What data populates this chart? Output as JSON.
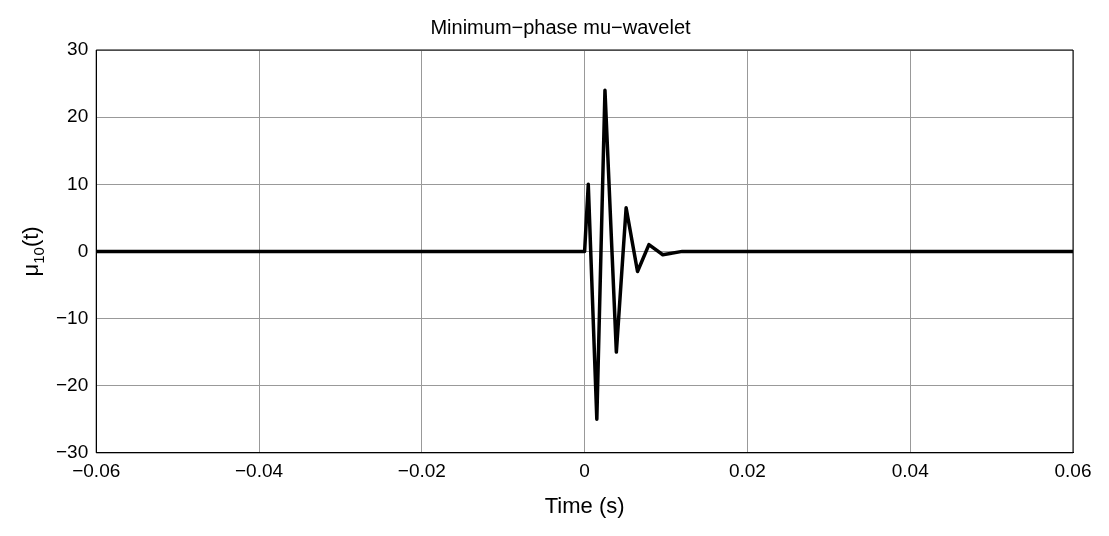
{
  "chart_data": {
    "type": "line",
    "title": "Minimum−phase mu−wavelet",
    "xlabel": "Time (s)",
    "ylabel": "μ$_{10}$(t)",
    "x": [
      -0.06,
      0,
      0.00045,
      0.0015,
      0.0025,
      0.0039,
      0.0051,
      0.0065,
      0.0079,
      0.0096,
      0.012,
      0.06
    ],
    "series": [
      {
        "color": "#000000",
        "values": [
          0,
          0,
          10,
          -25,
          24,
          -15,
          6.5,
          -3,
          1,
          -0.5,
          0,
          0
        ]
      }
    ],
    "xlim": [
      -0.06,
      0.06
    ],
    "xticks": [
      -0.06,
      -0.04,
      -0.02,
      0,
      0.02,
      0.04,
      0.06
    ],
    "ylim": [
      -30,
      30
    ],
    "yticks": [
      -30,
      -20,
      -10,
      0,
      10,
      20,
      30
    ],
    "grid": true,
    "legend": false,
    "marker": "none",
    "line_style": "solid"
  }
}
